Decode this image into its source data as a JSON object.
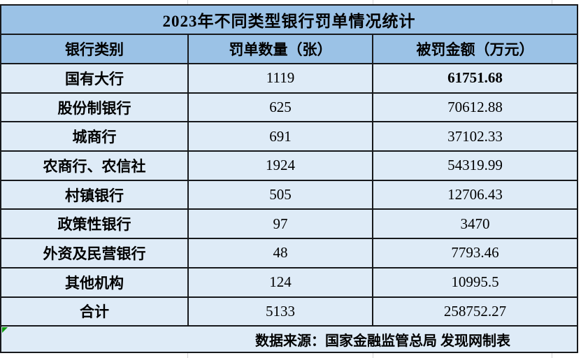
{
  "chart_data": {
    "type": "table",
    "title": "2023年不同类型银行罚单情况统计",
    "columns": [
      "银行类别",
      "罚单数量（张）",
      "被罚金额（万元）"
    ],
    "rows": [
      {
        "category": "国有大行",
        "count": "1119",
        "amount": "61751.68",
        "amount_bold": true
      },
      {
        "category": "股份制银行",
        "count": "625",
        "amount": "70612.88",
        "amount_bold": false
      },
      {
        "category": "城商行",
        "count": "691",
        "amount": "37102.33",
        "amount_bold": false
      },
      {
        "category": "农商行、农信社",
        "count": "1924",
        "amount": "54319.99",
        "amount_bold": false
      },
      {
        "category": "村镇银行",
        "count": "505",
        "amount": "12706.43",
        "amount_bold": false
      },
      {
        "category": "政策性银行",
        "count": "97",
        "amount": "3470",
        "amount_bold": false
      },
      {
        "category": "外资及民营银行",
        "count": "48",
        "amount": "7793.46",
        "amount_bold": false
      },
      {
        "category": "其他机构",
        "count": "124",
        "amount": "10995.5",
        "amount_bold": false
      },
      {
        "category": "合计",
        "count": "5133",
        "amount": "258752.27",
        "amount_bold": false
      }
    ],
    "source_note": "数据来源：国家金融监管总局  发现网制表"
  },
  "colors": {
    "header_bg": "#9bc2e6",
    "row_bg": "#deebf7",
    "border": "#17191c",
    "error_flag_green": "#0f9d0f",
    "gridline_gray": "#d6d6d6",
    "text": "#000000"
  }
}
